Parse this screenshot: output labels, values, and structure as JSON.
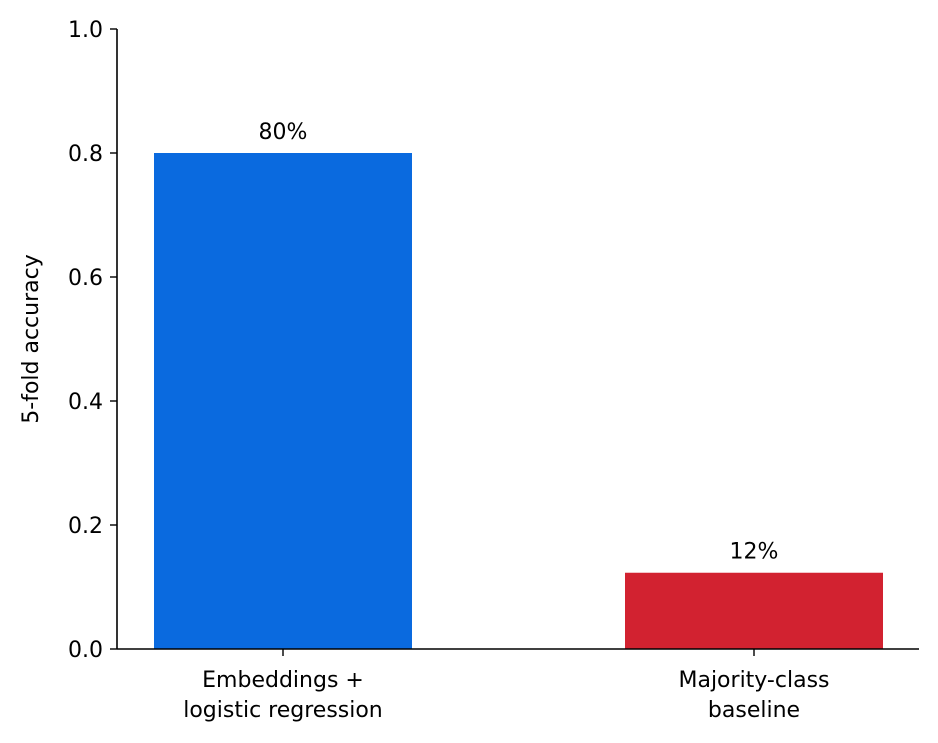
{
  "chart_data": {
    "type": "bar",
    "categories": [
      [
        "Embeddings +",
        "logistic regression"
      ],
      [
        "Majority-class",
        "baseline"
      ]
    ],
    "values": [
      0.8,
      0.123
    ],
    "value_labels": [
      "80%",
      "12%"
    ],
    "bar_colors": [
      "#0a6adf",
      "#d22230"
    ],
    "title": "",
    "xlabel": "",
    "ylabel": "5-fold accuracy",
    "ylim": [
      0,
      1.0
    ],
    "yticks": [
      "0.0",
      "0.2",
      "0.4",
      "0.6",
      "0.8",
      "1.0"
    ],
    "grid": false,
    "legend": "none"
  }
}
